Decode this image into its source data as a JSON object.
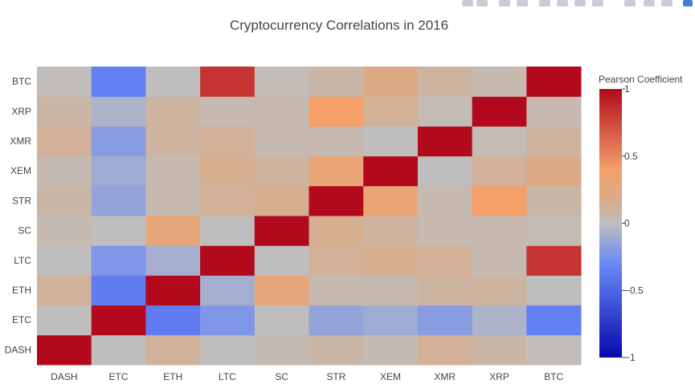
{
  "modebar": {
    "icons": [
      "camera-icon",
      "save-icon",
      "zoom-icon",
      "pan-icon",
      "zoom-in-icon",
      "zoom-out-icon",
      "autoscale-icon",
      "reset-axes-icon",
      "hover-closest-icon",
      "hover-compare-icon",
      "spike-lines-icon",
      "plotly-logo-icon"
    ]
  },
  "chart_data": {
    "type": "heatmap",
    "title": "Cryptocurrency Correlations in 2016",
    "x_categories": [
      "DASH",
      "ETC",
      "ETH",
      "LTC",
      "SC",
      "STR",
      "XEM",
      "XMR",
      "XRP",
      "BTC"
    ],
    "y_categories": [
      "DASH",
      "ETC",
      "ETH",
      "LTC",
      "SC",
      "STR",
      "XEM",
      "XMR",
      "XRP",
      "BTC"
    ],
    "z": [
      [
        1.0,
        0.0,
        0.12,
        0.0,
        0.04,
        0.08,
        0.04,
        0.13,
        0.08,
        0.01
      ],
      [
        0.0,
        1.0,
        -0.37,
        -0.22,
        0.0,
        -0.15,
        -0.11,
        -0.19,
        -0.06,
        -0.35
      ],
      [
        0.12,
        -0.37,
        1.0,
        -0.09,
        0.28,
        0.05,
        0.05,
        0.1,
        0.1,
        0.0
      ],
      [
        0.0,
        -0.22,
        -0.09,
        1.0,
        0.0,
        0.13,
        0.16,
        0.13,
        0.05,
        0.83
      ],
      [
        0.04,
        0.0,
        0.28,
        0.0,
        1.0,
        0.16,
        0.1,
        0.05,
        0.05,
        0.03
      ],
      [
        0.08,
        -0.15,
        0.05,
        0.13,
        0.16,
        1.0,
        0.3,
        0.05,
        0.4,
        0.08
      ],
      [
        0.04,
        -0.11,
        0.05,
        0.16,
        0.1,
        0.3,
        1.0,
        0.0,
        0.13,
        0.2
      ],
      [
        0.13,
        -0.19,
        0.1,
        0.13,
        0.05,
        0.05,
        0.0,
        1.0,
        0.03,
        0.1
      ],
      [
        0.08,
        -0.06,
        0.1,
        0.05,
        0.05,
        0.4,
        0.13,
        0.03,
        1.0,
        0.05
      ],
      [
        0.01,
        -0.35,
        0.0,
        0.83,
        0.03,
        0.08,
        0.2,
        0.1,
        0.05,
        1.0
      ]
    ],
    "zmin": -1,
    "zmax": 1,
    "colorscale": "coolwarm",
    "colorbar": {
      "title": "Pearson Coefficient",
      "tickvals": [
        1,
        0.5,
        0,
        -0.5,
        -1
      ],
      "ticktext": [
        "1",
        "0.5",
        "0",
        "−0.5",
        "−1"
      ]
    }
  }
}
